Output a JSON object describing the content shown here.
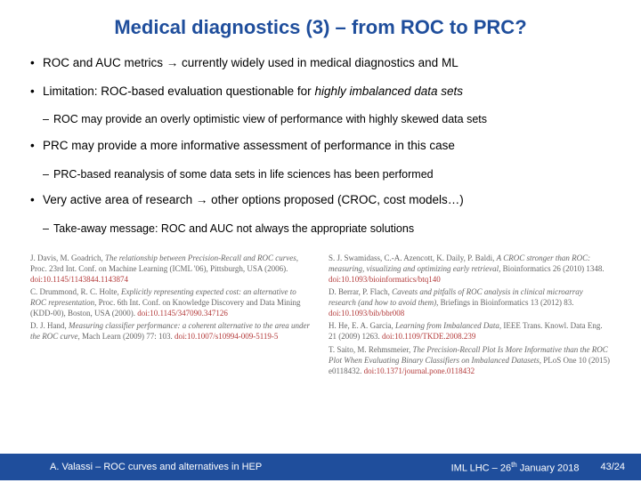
{
  "title": "Medical diagnostics (3) – from ROC to PRC?",
  "bullets": [
    {
      "level": 1,
      "html": "ROC and AUC metrics <span class='arrow'>→</span> currently widely used in medical diagnostics and ML"
    },
    {
      "level": 1,
      "html": "Limitation: ROC-based evaluation questionable for <span class='italic'>highly imbalanced data sets</span>",
      "sub": [
        "ROC may provide an overly optimistic view of performance with highly skewed data sets"
      ]
    },
    {
      "level": 1,
      "html": "PRC may provide a more informative assessment of performance in this case",
      "sub": [
        "PRC-based reanalysis of some data sets in life sciences has been performed"
      ]
    },
    {
      "level": 1,
      "html": "Very active area of research <span class='arrow'>→</span> other options proposed (CROC, cost models…)",
      "sub": [
        "Take-away message: ROC and AUC not always the appropriate solutions"
      ]
    }
  ],
  "refs_left": [
    "J. Davis, M. Goadrich, <span class='italic'>The relationship between Precision-Recall and ROC curves</span>, Proc. 23rd Int. Conf. on Machine Learning (ICML '06), Pittsburgh, USA (2006). <span class='doi'>doi:10.1145/1143844.1143874</span>",
    "C. Drummond, R. C. Holte, <span class='italic'>Explicitly representing expected cost: an alternative to ROC representation</span>, Proc. 6th Int. Conf. on Knowledge Discovery and Data Mining (KDD-00), Boston, USA (2000). <span class='doi'>doi:10.1145/347090.347126</span>",
    "D. J. Hand, <span class='italic'>Measuring classifier performance: a coherent alternative to the area under the ROC curve</span>, Mach Learn (2009) 77: 103. <span class='doi'>doi:10.1007/s10994-009-5119-5</span>"
  ],
  "refs_right": [
    "S. J. Swamidass, C.-A. Azencott, K. Daily, P. Baldi, <span class='italic'>A CROC stronger than ROC: measuring, visualizing and optimizing early retrieval</span>, Bioinformatics 26 (2010) 1348. <span class='doi'>doi:10.1093/bioinformatics/btq140</span>",
    "D. Berrar, P. Flach, <span class='italic'>Caveats and pitfalls of ROC analysis in clinical microarray research (and how to avoid them)</span>, Briefings in Bioinformatics 13 (2012) 83. <span class='doi'>doi:10.1093/bib/bbr008</span>",
    "H. He, E. A. Garcia, <span class='italic'>Learning from Imbalanced Data</span>, IEEE Trans. Knowl. Data Eng. 21 (2009) 1263. <span class='doi'>doi:10.1109/TKDE.2008.239</span>",
    "T. Saito, M. Rehmsmeier, <span class='italic'>The Precision-Recall Plot Is More Informative than the ROC Plot When Evaluating Binary Classifiers on Imbalanced Datasets</span>, PLoS One 10 (2015) e0118432. <span class='doi'>doi:10.1371/journal.pone.0118432</span>"
  ],
  "footer": {
    "left": "A. Valassi – ROC curves and alternatives in HEP",
    "mid_pre": "IML LHC – 26",
    "mid_sup": "th",
    "mid_post": " January 2018",
    "right": "43/24"
  },
  "colors": {
    "title": "#1f4e9c",
    "footer_bg": "#1f4e9c",
    "doi": "#b33a3a",
    "ref_text": "#666666"
  }
}
